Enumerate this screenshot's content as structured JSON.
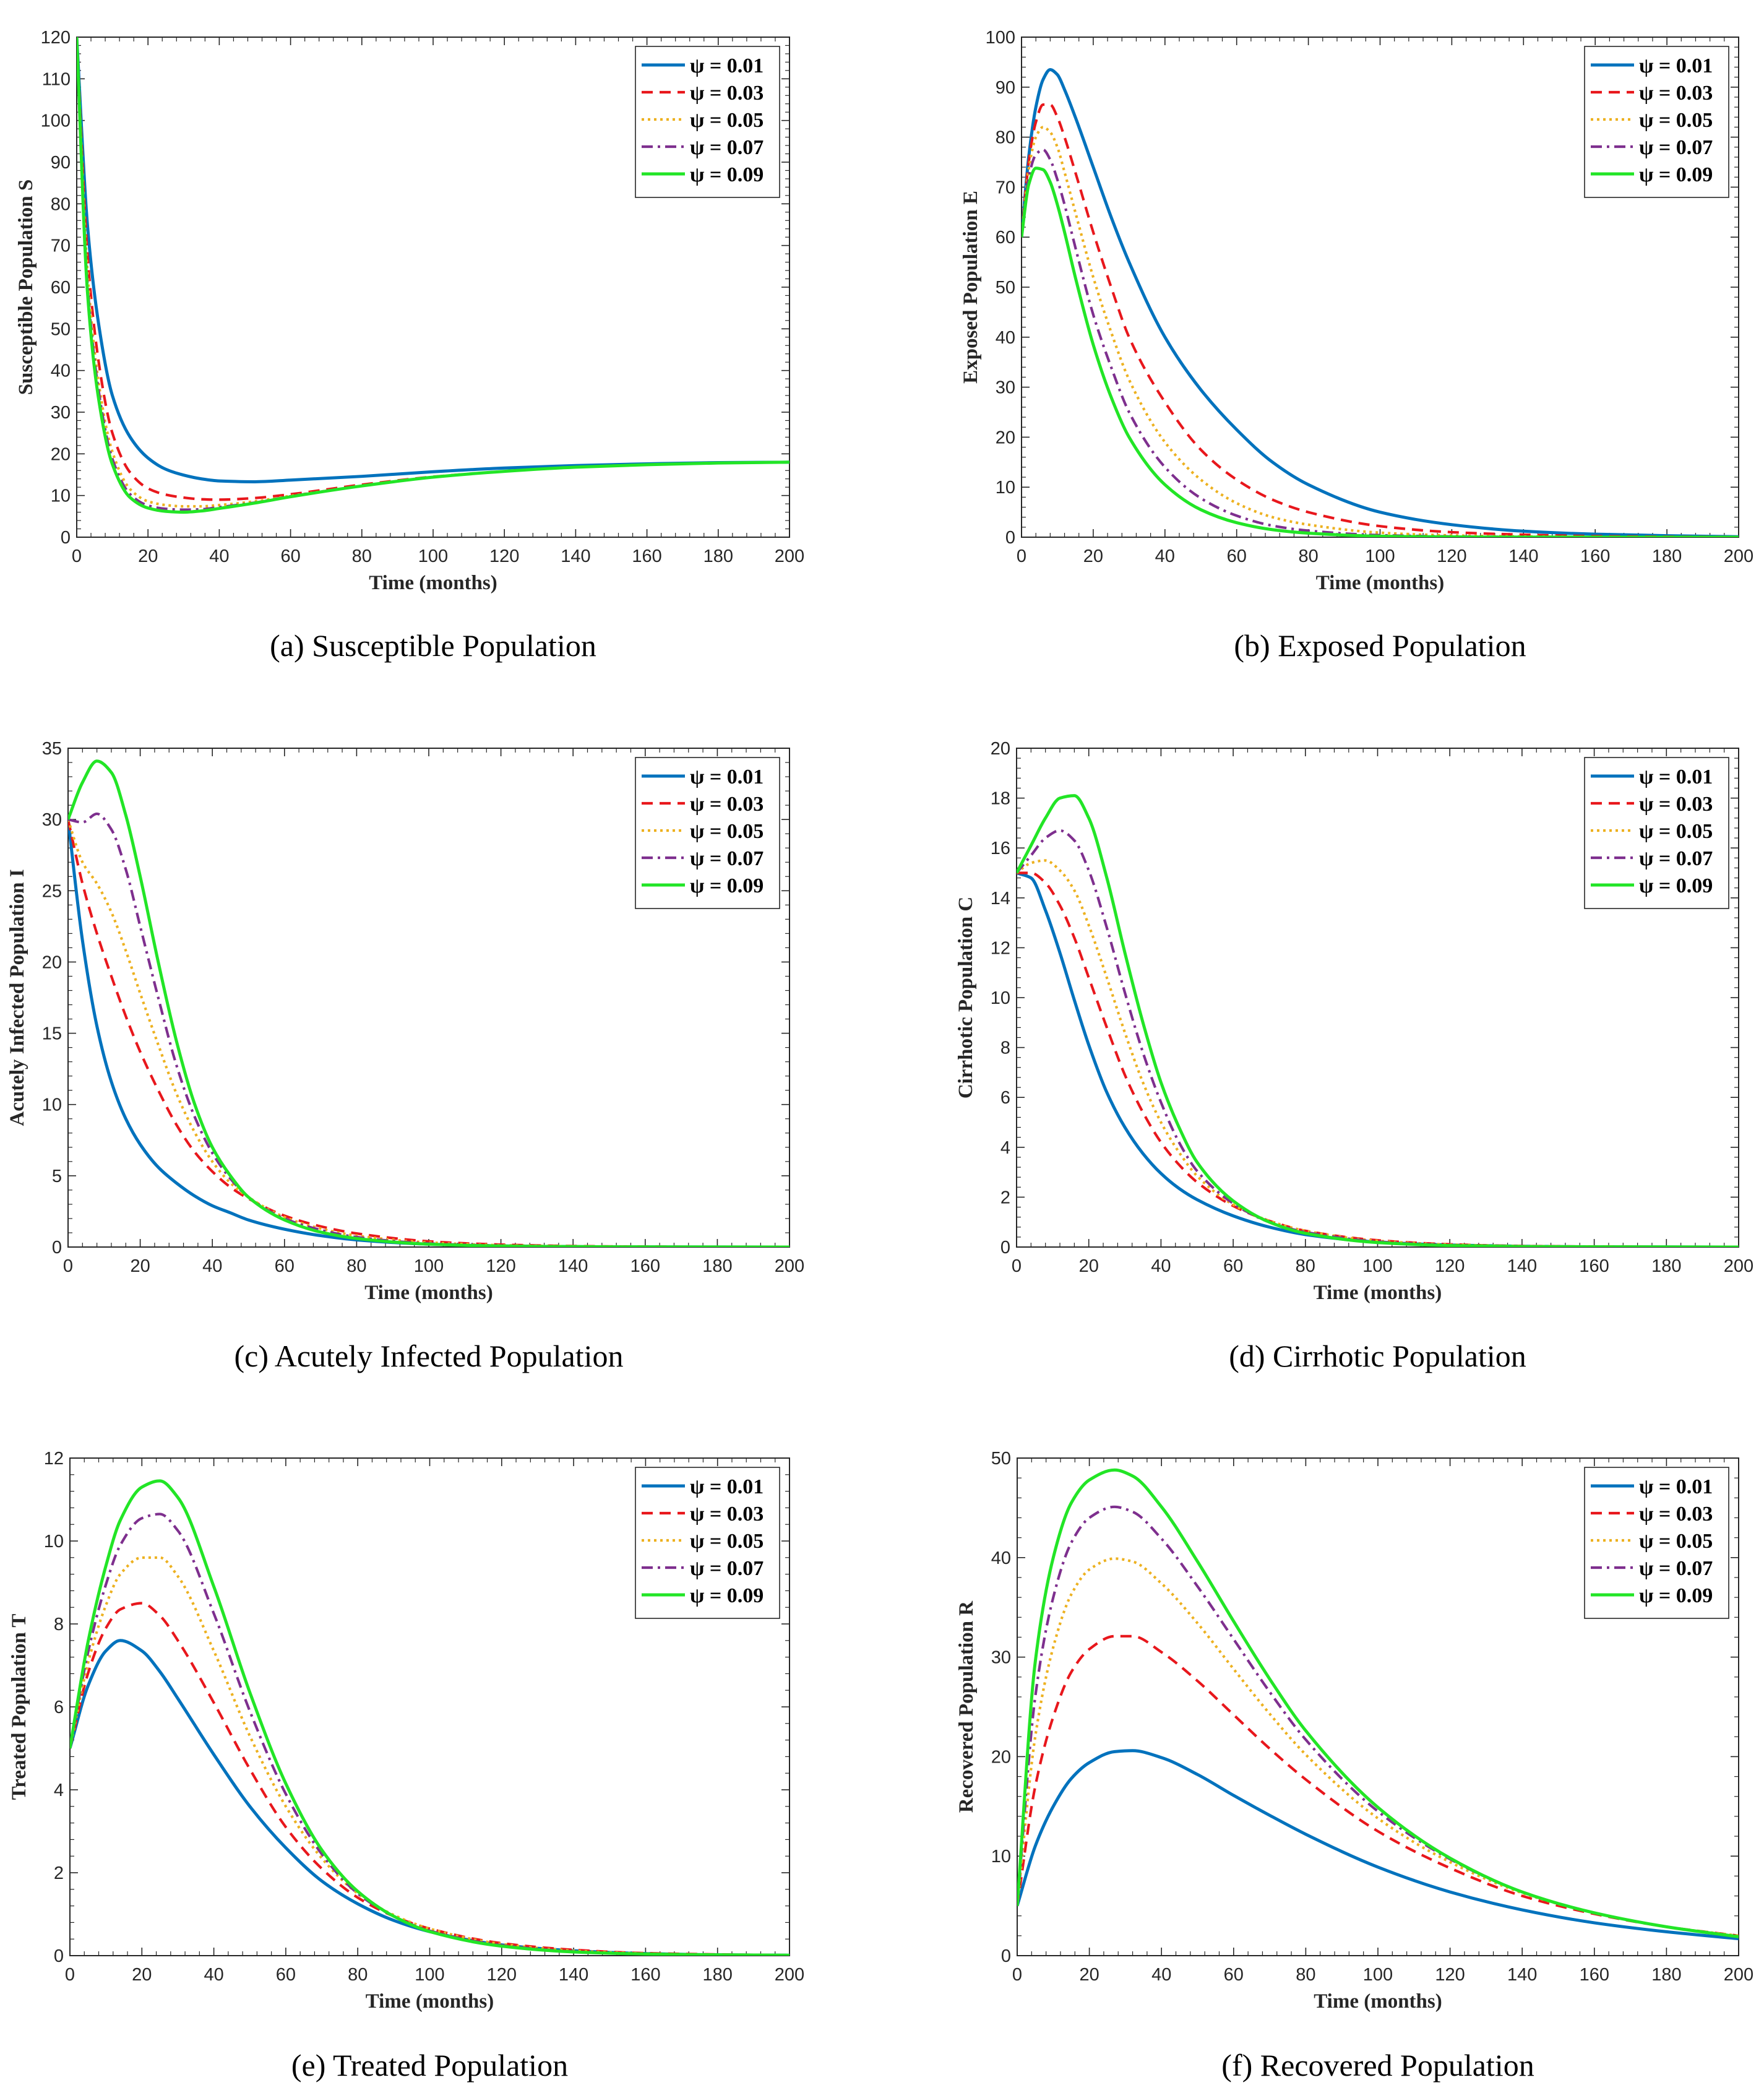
{
  "figure": {
    "legend_symbol": "ψ",
    "colors": [
      "#0072BD",
      "#E8171C",
      "#EDB120",
      "#7E2F8E",
      "#22E526"
    ]
  },
  "chart_data": [
    {
      "id": "a",
      "type": "line",
      "caption": "(a) Susceptible Population",
      "xlabel": "Time (months)",
      "ylabel": "Susceptible Population S",
      "xlim": [
        0,
        200
      ],
      "ylim": [
        0,
        120
      ],
      "xticks": [
        0,
        20,
        40,
        60,
        80,
        100,
        120,
        140,
        160,
        180,
        200
      ],
      "yticks": [
        0,
        10,
        20,
        30,
        40,
        50,
        60,
        70,
        80,
        90,
        100,
        110,
        120
      ],
      "legend_position": "top-right",
      "x": [
        0,
        3,
        6,
        10,
        15,
        20,
        25,
        30,
        35,
        40,
        50,
        60,
        80,
        100,
        120,
        140,
        160,
        180,
        200
      ],
      "series": [
        {
          "name": "ψ = 0.01",
          "style": "solid",
          "values": [
            120,
            75,
            52,
            34,
            24,
            19,
            16.3,
            14.9,
            14,
            13.5,
            13.3,
            13.7,
            14.6,
            15.7,
            16.6,
            17.2,
            17.6,
            17.9,
            18
          ]
        },
        {
          "name": "ψ = 0.03",
          "style": "dashed",
          "values": [
            120,
            68,
            43,
            25,
            15.5,
            11.7,
            10.2,
            9.5,
            9.1,
            9.0,
            9.4,
            10.3,
            12.6,
            14.5,
            15.8,
            16.8,
            17.4,
            17.8,
            18
          ]
        },
        {
          "name": "ψ = 0.05",
          "style": "dotted",
          "values": [
            120,
            64,
            38,
            20.5,
            11.5,
            8.6,
            7.7,
            7.4,
            7.4,
            7.7,
            8.6,
            9.9,
            12.3,
            14.4,
            15.8,
            16.8,
            17.4,
            17.8,
            18
          ]
        },
        {
          "name": "ψ = 0.07",
          "style": "dashdot",
          "values": [
            120,
            61,
            36,
            18.8,
            10.3,
            7.6,
            6.8,
            6.6,
            6.7,
            7.2,
            8.3,
            9.8,
            12.3,
            14.4,
            15.8,
            16.8,
            17.4,
            17.8,
            18
          ]
        },
        {
          "name": "ψ = 0.09",
          "style": "solid",
          "values": [
            120,
            59,
            34,
            17.5,
            9.5,
            7.0,
            6.2,
            6.0,
            6.3,
            6.9,
            8.2,
            9.7,
            12.3,
            14.4,
            15.8,
            16.8,
            17.4,
            17.8,
            18
          ]
        }
      ]
    },
    {
      "id": "b",
      "type": "line",
      "caption": "(b) Exposed Population",
      "xlabel": "Time (months)",
      "ylabel": "Exposed Population E",
      "xlim": [
        0,
        200
      ],
      "ylim": [
        0,
        100
      ],
      "xticks": [
        0,
        20,
        40,
        60,
        80,
        100,
        120,
        140,
        160,
        180,
        200
      ],
      "yticks": [
        0,
        10,
        20,
        30,
        40,
        50,
        60,
        70,
        80,
        90,
        100
      ],
      "legend_position": "top-right",
      "x": [
        0,
        2,
        4,
        6,
        8,
        10,
        12,
        15,
        20,
        25,
        30,
        40,
        50,
        60,
        70,
        80,
        100,
        120,
        140,
        160,
        180,
        200
      ],
      "series": [
        {
          "name": "ψ = 0.01",
          "style": "solid",
          "values": [
            60,
            76,
            86,
            91.5,
            93.5,
            92.5,
            89.5,
            84,
            74,
            64,
            55,
            40,
            29.5,
            21.5,
            15,
            10.5,
            5,
            2.5,
            1.2,
            0.6,
            0.3,
            0.1
          ]
        },
        {
          "name": "ψ = 0.03",
          "style": "dashed",
          "values": [
            60,
            75,
            83,
            86.5,
            86.5,
            84,
            80,
            73,
            61,
            50,
            40,
            27,
            17.5,
            11.5,
            7.5,
            5,
            2.2,
            1,
            0.5,
            0.2,
            0.1,
            0.05
          ]
        },
        {
          "name": "ψ = 0.05",
          "style": "dotted",
          "values": [
            60,
            73.5,
            80,
            82,
            81,
            78,
            73,
            65,
            52,
            41,
            31.5,
            19,
            11.5,
            6.8,
            4,
            2.5,
            0.9,
            0.35,
            0.15,
            0.05,
            0.02,
            0.01
          ]
        },
        {
          "name": "ψ = 0.07",
          "style": "dashdot",
          "values": [
            60,
            72,
            76.5,
            77.5,
            75.5,
            71.5,
            66.5,
            58,
            44.5,
            34,
            25,
            14,
            7.8,
            4.3,
            2.3,
            1.3,
            0.4,
            0.15,
            0.05,
            0.02,
            0.01,
            0
          ]
        },
        {
          "name": "ψ = 0.09",
          "style": "solid",
          "values": [
            60,
            70.5,
            73.8,
            73.5,
            71,
            66.5,
            61,
            52,
            38.5,
            28,
            20,
            10.5,
            5.5,
            2.9,
            1.5,
            0.8,
            0.2,
            0.06,
            0.02,
            0.01,
            0,
            0
          ]
        }
      ]
    },
    {
      "id": "c",
      "type": "line",
      "caption": "(c) Acutely Infected Population",
      "xlabel": "Time (months)",
      "ylabel": "Acutely Infected Population I",
      "xlim": [
        0,
        200
      ],
      "ylim": [
        0,
        35
      ],
      "xticks": [
        0,
        20,
        40,
        60,
        80,
        100,
        120,
        140,
        160,
        180,
        200
      ],
      "yticks": [
        0,
        5,
        10,
        15,
        20,
        25,
        30,
        35
      ],
      "legend_position": "top-right",
      "x": [
        0,
        4,
        8,
        12,
        16,
        20,
        25,
        30,
        35,
        40,
        45,
        50,
        60,
        70,
        80,
        100,
        120,
        140,
        160,
        200
      ],
      "series": [
        {
          "name": "ψ = 0.01",
          "style": "solid",
          "values": [
            30,
            21.5,
            15.5,
            11.6,
            9.0,
            7.2,
            5.6,
            4.5,
            3.6,
            2.9,
            2.4,
            1.9,
            1.25,
            0.8,
            0.5,
            0.2,
            0.08,
            0.03,
            0.01,
            0
          ]
        },
        {
          "name": "ψ = 0.03",
          "style": "dashed",
          "values": [
            30,
            25.5,
            22,
            19,
            16.2,
            13.7,
            11,
            8.6,
            6.7,
            5.3,
            4.2,
            3.4,
            2.2,
            1.45,
            0.95,
            0.4,
            0.17,
            0.07,
            0.03,
            0
          ]
        },
        {
          "name": "ψ = 0.05",
          "style": "dotted",
          "values": [
            30,
            27,
            25.5,
            23.5,
            20.8,
            17.8,
            14.2,
            10.8,
            8.1,
            6.0,
            4.5,
            3.5,
            2.1,
            1.3,
            0.8,
            0.32,
            0.13,
            0.05,
            0.02,
            0
          ]
        },
        {
          "name": "ψ = 0.07",
          "style": "dashdot",
          "values": [
            30,
            29.8,
            30.4,
            29.3,
            26.5,
            22.5,
            17.5,
            12.8,
            9.2,
            6.6,
            4.8,
            3.5,
            2.0,
            1.2,
            0.7,
            0.25,
            0.1,
            0.04,
            0.01,
            0
          ]
        },
        {
          "name": "ψ = 0.09",
          "style": "solid",
          "values": [
            30,
            32.6,
            34.1,
            33.3,
            30.3,
            26,
            20,
            14.5,
            10.1,
            7.0,
            5.0,
            3.5,
            1.9,
            1.05,
            0.6,
            0.2,
            0.07,
            0.03,
            0.01,
            0
          ]
        }
      ]
    },
    {
      "id": "d",
      "type": "line",
      "caption": "(d) Cirrhotic Population",
      "xlabel": "Time (months)",
      "ylabel": "Cirrhotic Population C",
      "xlim": [
        0,
        200
      ],
      "ylim": [
        0,
        20
      ],
      "xticks": [
        0,
        20,
        40,
        60,
        80,
        100,
        120,
        140,
        160,
        180,
        200
      ],
      "yticks": [
        0,
        2,
        4,
        6,
        8,
        10,
        12,
        14,
        16,
        18,
        20
      ],
      "legend_position": "top-right",
      "x": [
        0,
        4,
        8,
        12,
        16,
        20,
        25,
        30,
        35,
        40,
        45,
        50,
        60,
        70,
        80,
        100,
        120,
        140,
        160,
        200
      ],
      "series": [
        {
          "name": "ψ = 0.01",
          "style": "solid",
          "values": [
            15,
            14.8,
            13.5,
            11.8,
            9.9,
            8.1,
            6.2,
            4.8,
            3.75,
            2.95,
            2.35,
            1.9,
            1.25,
            0.8,
            0.5,
            0.2,
            0.08,
            0.03,
            0.01,
            0
          ]
        },
        {
          "name": "ψ = 0.03",
          "style": "dashed",
          "values": [
            15,
            15,
            14.6,
            13.7,
            12.4,
            10.8,
            8.8,
            6.9,
            5.4,
            4.2,
            3.3,
            2.6,
            1.65,
            1.05,
            0.65,
            0.27,
            0.11,
            0.04,
            0.02,
            0
          ]
        },
        {
          "name": "ψ = 0.05",
          "style": "dotted",
          "values": [
            15,
            15.4,
            15.5,
            15.1,
            14.3,
            12.9,
            10.8,
            8.6,
            6.6,
            5.0,
            3.8,
            2.85,
            1.7,
            1.05,
            0.65,
            0.25,
            0.1,
            0.04,
            0.02,
            0
          ]
        },
        {
          "name": "ψ = 0.07",
          "style": "dashdot",
          "values": [
            15,
            15.7,
            16.4,
            16.7,
            16.3,
            15.1,
            12.8,
            10.2,
            7.8,
            5.8,
            4.2,
            3.05,
            1.75,
            1.0,
            0.6,
            0.22,
            0.08,
            0.03,
            0.01,
            0
          ]
        },
        {
          "name": "ψ = 0.09",
          "style": "solid",
          "values": [
            15,
            16.1,
            17.2,
            18.0,
            18.1,
            17.2,
            14.8,
            11.8,
            9.0,
            6.6,
            4.8,
            3.4,
            1.85,
            1.0,
            0.55,
            0.18,
            0.06,
            0.02,
            0.01,
            0
          ]
        }
      ]
    },
    {
      "id": "e",
      "type": "line",
      "caption": "(e) Treated Population",
      "xlabel": "Time (months)",
      "ylabel": "Treated Population T",
      "xlim": [
        0,
        200
      ],
      "ylim": [
        0,
        12
      ],
      "xticks": [
        0,
        20,
        40,
        60,
        80,
        100,
        120,
        140,
        160,
        180,
        200
      ],
      "yticks": [
        0,
        2,
        4,
        6,
        8,
        10,
        12
      ],
      "legend_position": "top-right",
      "x": [
        0,
        5,
        10,
        14,
        20,
        25,
        30,
        40,
        50,
        60,
        70,
        80,
        90,
        100,
        120,
        140,
        160,
        180,
        200
      ],
      "series": [
        {
          "name": "ψ = 0.01",
          "style": "solid",
          "values": [
            5,
            6.5,
            7.35,
            7.6,
            7.35,
            6.85,
            6.2,
            4.85,
            3.6,
            2.6,
            1.8,
            1.25,
            0.85,
            0.58,
            0.26,
            0.12,
            0.05,
            0.02,
            0.01
          ]
        },
        {
          "name": "ψ = 0.03",
          "style": "dashed",
          "values": [
            5,
            6.8,
            7.9,
            8.35,
            8.5,
            8.2,
            7.6,
            6.1,
            4.5,
            3.1,
            2.1,
            1.4,
            0.95,
            0.65,
            0.3,
            0.14,
            0.06,
            0.03,
            0.01
          ]
        },
        {
          "name": "ψ = 0.05",
          "style": "dotted",
          "values": [
            5,
            7.05,
            8.45,
            9.2,
            9.6,
            9.6,
            9.15,
            7.35,
            5.3,
            3.6,
            2.35,
            1.5,
            0.98,
            0.65,
            0.28,
            0.12,
            0.05,
            0.02,
            0.01
          ]
        },
        {
          "name": "ψ = 0.07",
          "style": "dashdot",
          "values": [
            5,
            7.3,
            8.95,
            9.9,
            10.55,
            10.65,
            10.25,
            8.25,
            5.9,
            3.9,
            2.45,
            1.5,
            0.95,
            0.6,
            0.25,
            0.1,
            0.04,
            0.02,
            0.01
          ]
        },
        {
          "name": "ψ = 0.09",
          "style": "solid",
          "values": [
            5,
            7.55,
            9.4,
            10.5,
            11.3,
            11.45,
            11.05,
            8.9,
            6.35,
            4.15,
            2.55,
            1.55,
            0.95,
            0.58,
            0.23,
            0.09,
            0.04,
            0.02,
            0.01
          ]
        }
      ]
    },
    {
      "id": "f",
      "type": "line",
      "caption": "(f) Recovered Population",
      "xlabel": "Time (months)",
      "ylabel": "Recovered Population R",
      "xlim": [
        0,
        200
      ],
      "ylim": [
        0,
        50
      ],
      "xticks": [
        0,
        20,
        40,
        60,
        80,
        100,
        120,
        140,
        160,
        180,
        200
      ],
      "yticks": [
        0,
        10,
        20,
        30,
        40,
        50
      ],
      "legend_position": "top-right",
      "x": [
        0,
        5,
        10,
        15,
        20,
        27,
        32,
        40,
        50,
        60,
        70,
        80,
        100,
        120,
        140,
        160,
        180,
        200
      ],
      "series": [
        {
          "name": "ψ = 0.01",
          "style": "solid",
          "values": [
            5,
            11,
            15,
            17.8,
            19.4,
            20.5,
            20.6,
            19.9,
            18.2,
            16.1,
            14.1,
            12.2,
            8.9,
            6.4,
            4.6,
            3.3,
            2.4,
            1.7
          ]
        },
        {
          "name": "ψ = 0.03",
          "style": "dashed",
          "values": [
            5,
            17,
            24,
            28.5,
            30.8,
            32.1,
            32.1,
            30.5,
            27.6,
            24.2,
            20.8,
            17.7,
            12.5,
            8.8,
            6.0,
            4.2,
            2.9,
            2.0
          ]
        },
        {
          "name": "ψ = 0.05",
          "style": "dotted",
          "values": [
            5,
            22,
            31,
            36.3,
            38.8,
            39.9,
            39.6,
            37.4,
            33.4,
            28.8,
            24.3,
            20.2,
            13.8,
            9.4,
            6.3,
            4.3,
            2.9,
            2.0
          ]
        },
        {
          "name": "ψ = 0.07",
          "style": "dashdot",
          "values": [
            5,
            26,
            36,
            41.5,
            44,
            45.1,
            44.6,
            41.9,
            37.1,
            31.8,
            26.5,
            21.7,
            14.5,
            9.7,
            6.4,
            4.3,
            2.9,
            1.9
          ]
        },
        {
          "name": "ψ = 0.09",
          "style": "solid",
          "values": [
            5,
            29.5,
            40,
            45.5,
            47.8,
            48.8,
            48.2,
            45.1,
            39.6,
            33.6,
            27.8,
            22.6,
            14.9,
            9.8,
            6.4,
            4.3,
            2.9,
            1.9
          ]
        }
      ]
    }
  ]
}
